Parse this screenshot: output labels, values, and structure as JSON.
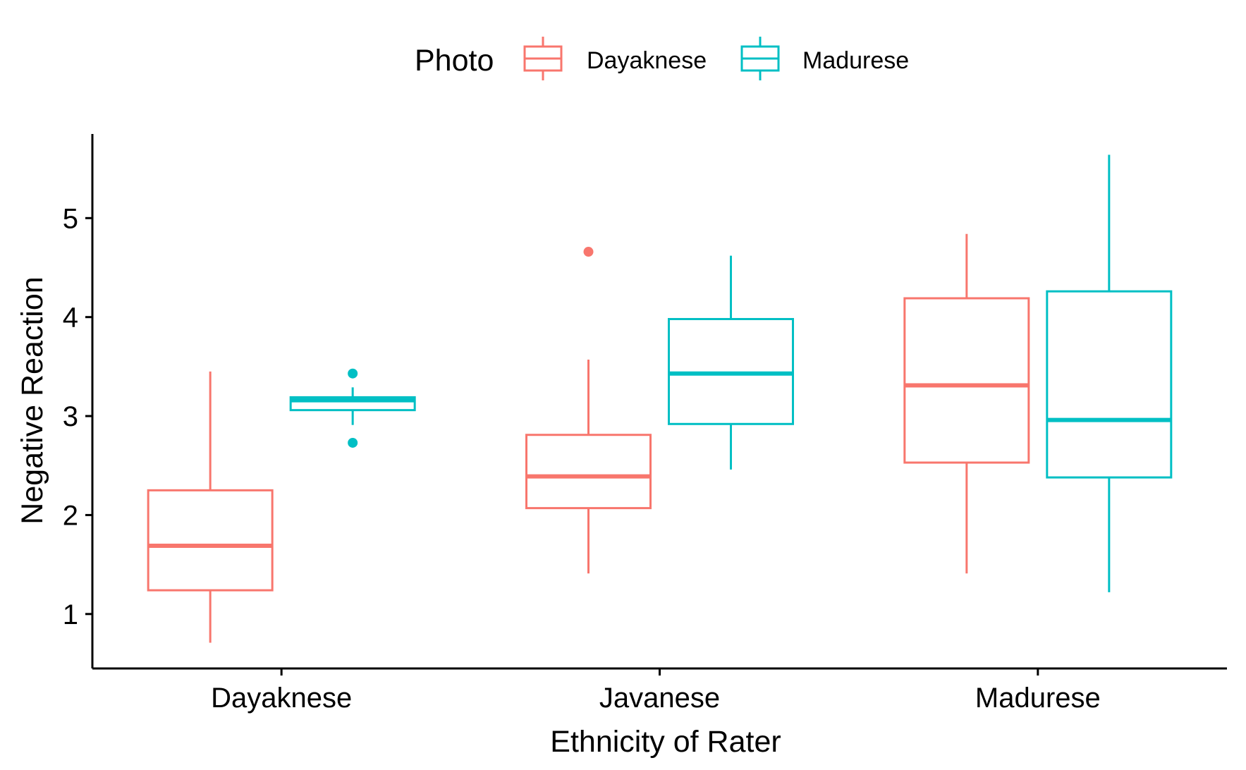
{
  "chart_data": {
    "type": "boxplot",
    "xlabel": "Ethnicity of Rater",
    "ylabel": "Negative Reaction",
    "ylim": [
      0.45,
      5.85
    ],
    "yticks": [
      1,
      2,
      3,
      4,
      5
    ],
    "categories": [
      "Dayaknese",
      "Javanese",
      "Madurese"
    ],
    "legend": {
      "title": "Photo",
      "position": "top"
    },
    "grid": false,
    "series": [
      {
        "name": "Dayaknese",
        "color": "#F8766D",
        "boxes": [
          {
            "whisker_low": 0.71,
            "q1": 1.24,
            "median": 1.69,
            "q3": 2.25,
            "whisker_high": 3.45,
            "outliers": []
          },
          {
            "whisker_low": 1.41,
            "q1": 2.07,
            "median": 2.39,
            "q3": 2.81,
            "whisker_high": 3.57,
            "outliers": [
              4.66
            ]
          },
          {
            "whisker_low": 1.41,
            "q1": 2.53,
            "median": 3.31,
            "q3": 4.19,
            "whisker_high": 4.84,
            "outliers": []
          }
        ]
      },
      {
        "name": "Madurese",
        "color": "#00BFC4",
        "boxes": [
          {
            "whisker_low": 2.91,
            "q1": 3.06,
            "median": 3.16,
            "q3": 3.19,
            "whisker_high": 3.29,
            "outliers": [
              3.43,
              2.73
            ]
          },
          {
            "whisker_low": 2.46,
            "q1": 2.92,
            "median": 3.43,
            "q3": 3.98,
            "whisker_high": 4.62,
            "outliers": []
          },
          {
            "whisker_low": 1.22,
            "q1": 2.38,
            "median": 2.96,
            "q3": 4.26,
            "whisker_high": 5.64,
            "outliers": []
          }
        ]
      }
    ]
  }
}
